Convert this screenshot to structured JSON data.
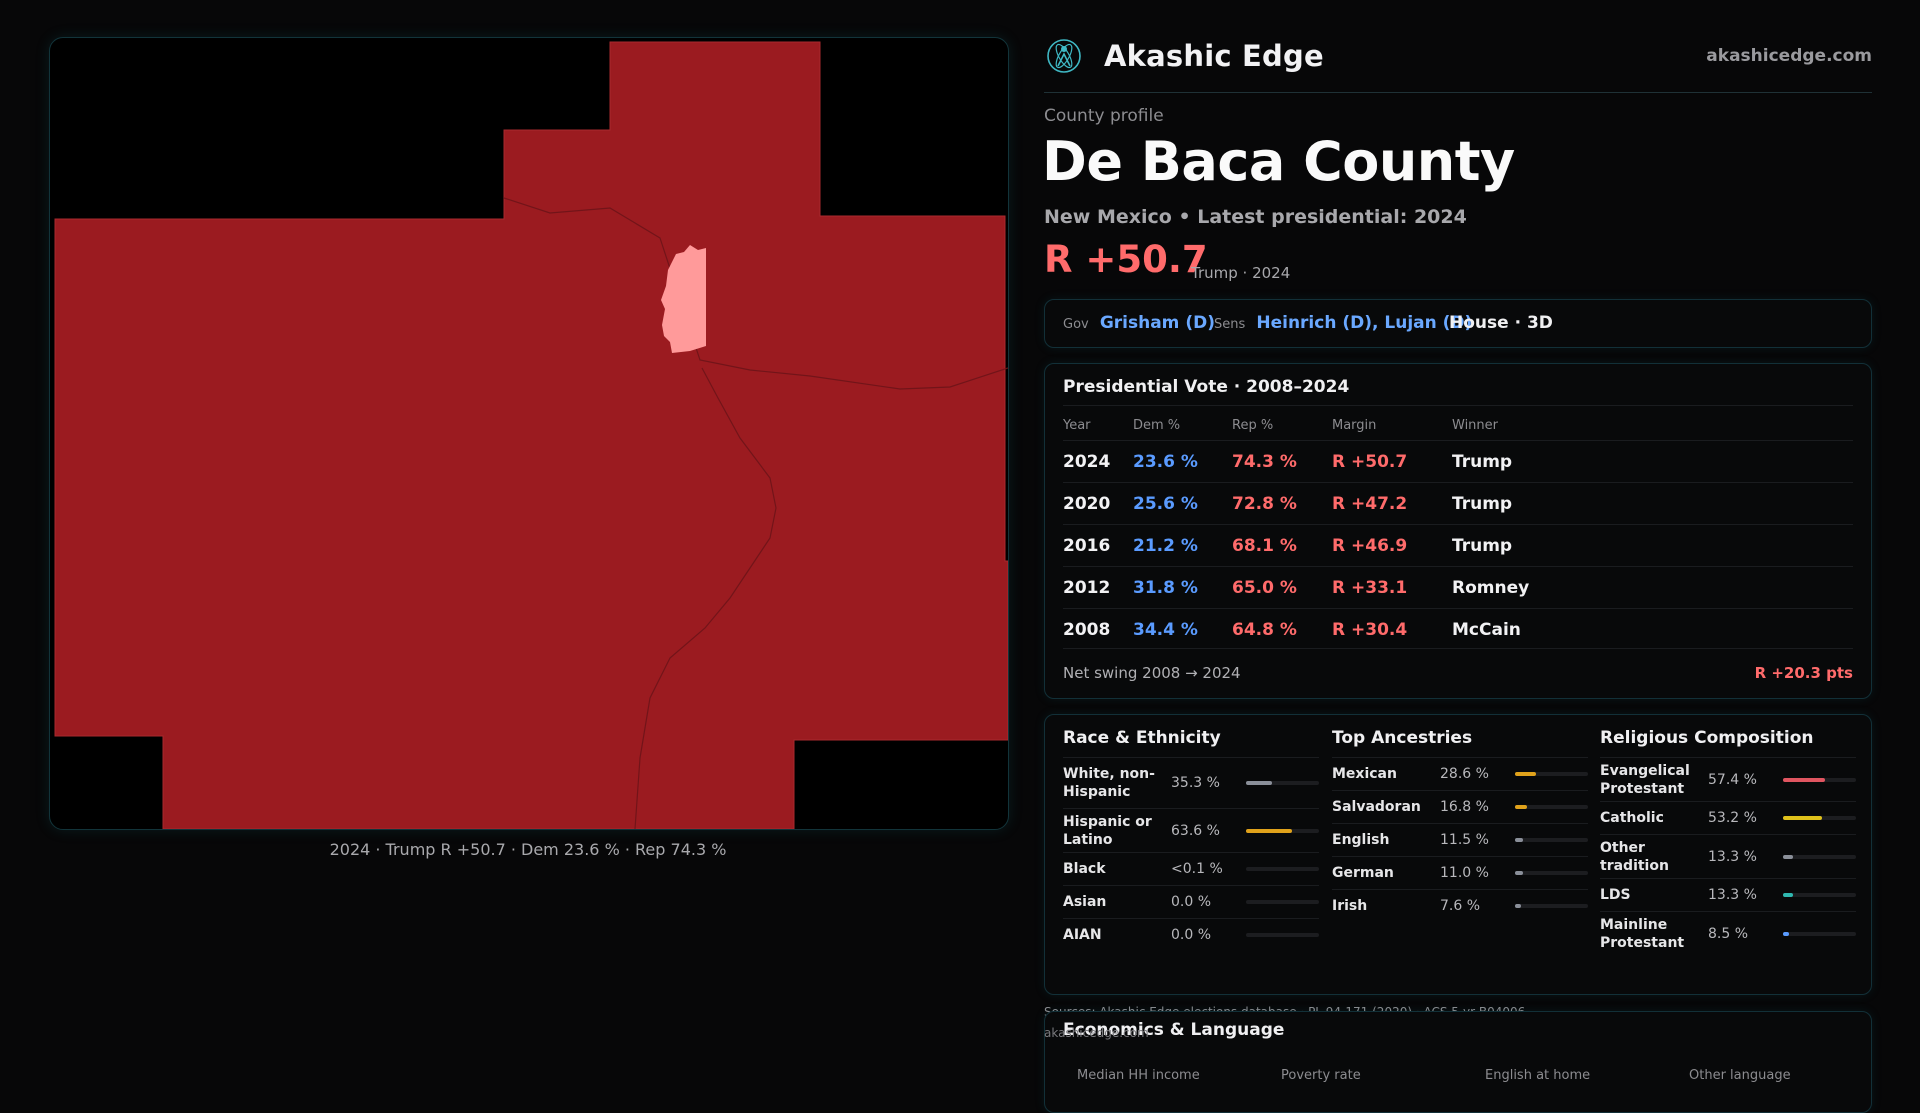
{
  "app": {
    "title": "Akashic Edge",
    "site": "akashicedge.com",
    "logo_icon": "atom-person-icon",
    "accent": "#3fb8c4"
  },
  "map": {
    "caption": "2024 · Trump R +50.7 · Dem 23.6 % · Rep 74.3 %",
    "county_color": "#9b1b20",
    "highlight_color": "#ff9a9a",
    "border_color": "#12343a"
  },
  "profile": {
    "label": "County profile",
    "county": "De Baca County",
    "subtitle": "New Mexico • Latest presidential: 2024",
    "margin": "R +50.7",
    "margin_note": "Trump · 2024"
  },
  "officials": {
    "gov_key": "Gov",
    "gov": "Grisham (D)",
    "sens_key": "Sens",
    "sens": "Heinrich (D), Lujan (D)",
    "house": "House · 3D"
  },
  "presidential": {
    "title": "Presidential Vote · 2008–2024",
    "headers": [
      "Year",
      "Dem %",
      "Rep %",
      "Margin",
      "Winner"
    ],
    "rows": [
      {
        "year": "2024",
        "dem": "23.6 %",
        "rep": "74.3 %",
        "margin": "R +50.7",
        "winner": "Trump"
      },
      {
        "year": "2020",
        "dem": "25.6 %",
        "rep": "72.8 %",
        "margin": "R +47.2",
        "winner": "Trump"
      },
      {
        "year": "2016",
        "dem": "21.2 %",
        "rep": "68.1 %",
        "margin": "R +46.9",
        "winner": "Trump"
      },
      {
        "year": "2012",
        "dem": "31.8 %",
        "rep": "65.0 %",
        "margin": "R +33.1",
        "winner": "Romney"
      },
      {
        "year": "2008",
        "dem": "34.4 %",
        "rep": "64.8 %",
        "margin": "R +30.4",
        "winner": "McCain"
      }
    ],
    "swing_label": "Net swing 2008 → 2024",
    "swing_value": "R +20.3 pts"
  },
  "race": {
    "title": "Race & Ethnicity",
    "rows": [
      {
        "label": "White, non-Hispanic",
        "value": "35.3 %",
        "fraction": 0.353,
        "color": "#8a8f99"
      },
      {
        "label": "Hispanic or Latino",
        "value": "63.6 %",
        "fraction": 0.636,
        "color": "#e0a21b"
      },
      {
        "label": "Black",
        "value": "<0.1 %",
        "fraction": 0.0,
        "color": "#8a8f99"
      },
      {
        "label": "Asian",
        "value": "0.0 %",
        "fraction": 0.0,
        "color": "#8a8f99"
      },
      {
        "label": "AIAN",
        "value": "0.0 %",
        "fraction": 0.0,
        "color": "#8a8f99"
      }
    ]
  },
  "ancestry": {
    "title": "Top Ancestries",
    "rows": [
      {
        "label": "Mexican",
        "value": "28.6 %",
        "fraction": 0.286,
        "color": "#e0a21b"
      },
      {
        "label": "Salvadoran",
        "value": "16.8 %",
        "fraction": 0.168,
        "color": "#e0a21b"
      },
      {
        "label": "English",
        "value": "11.5 %",
        "fraction": 0.115,
        "color": "#8a8f99"
      },
      {
        "label": "German",
        "value": "11.0 %",
        "fraction": 0.11,
        "color": "#8a8f99"
      },
      {
        "label": "Irish",
        "value": "7.6 %",
        "fraction": 0.076,
        "color": "#8a8f99"
      }
    ]
  },
  "religion": {
    "title": "Religious Composition",
    "rows": [
      {
        "label": "Evangelical Protestant",
        "value": "57.4 %",
        "fraction": 0.574,
        "color": "#e05560"
      },
      {
        "label": "Catholic",
        "value": "53.2 %",
        "fraction": 0.532,
        "color": "#e0c21b"
      },
      {
        "label": "Other tradition",
        "value": "13.3 %",
        "fraction": 0.133,
        "color": "#8a8f99"
      },
      {
        "label": "LDS",
        "value": "13.3 %",
        "fraction": 0.133,
        "color": "#2fb8b0"
      },
      {
        "label": "Mainline Protestant",
        "value": "8.5 %",
        "fraction": 0.085,
        "color": "#5a9bff"
      }
    ]
  },
  "economics": {
    "title": "Economics & Language",
    "headers": [
      "Median HH income",
      "Poverty rate",
      "English at home",
      "Other language"
    ]
  },
  "sources": {
    "line1": "Sources: Akashic Edge elections database · PL 94-171 (2020) · ACS 5-yr B04006",
    "line2": "akashicedge.com"
  }
}
